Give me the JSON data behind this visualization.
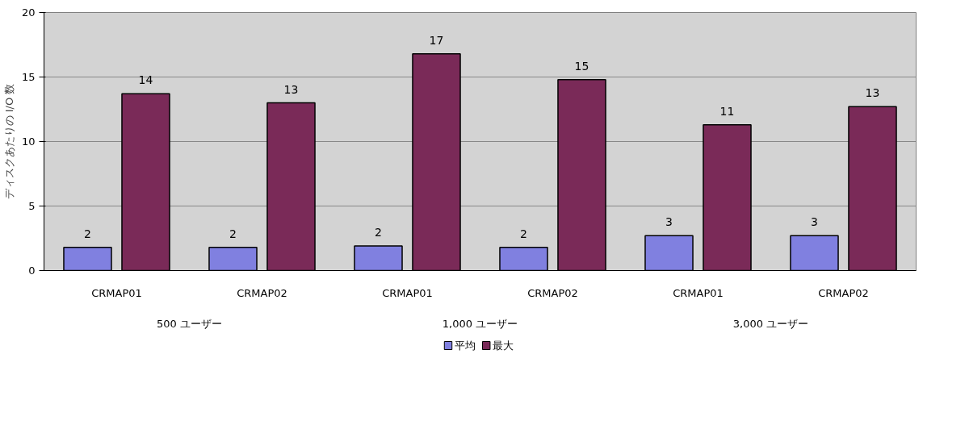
{
  "chart_data": {
    "type": "bar",
    "ylabel": "ディスクあたりの I/O 数",
    "categories": [
      "CRMAP01",
      "CRMAP02",
      "CRMAP01",
      "CRMAP02",
      "CRMAP01",
      "CRMAP02"
    ],
    "annotations": [
      "500 ユーザー",
      "1,000 ユーザー",
      "3,000 ユーザー"
    ],
    "series": [
      {
        "name": "平均",
        "color": "#8080e0",
        "values": [
          1.8,
          1.8,
          1.9,
          1.8,
          2.7,
          2.7
        ],
        "value_labels": [
          "2",
          "2",
          "2",
          "2",
          "3",
          "3"
        ]
      },
      {
        "name": "最大",
        "color": "#7a2a58",
        "values": [
          13.7,
          13.0,
          16.8,
          14.8,
          11.3,
          12.7
        ],
        "value_labels": [
          "14",
          "13",
          "17",
          "15",
          "11",
          "13"
        ]
      }
    ],
    "ylim": [
      0,
      20
    ],
    "yticks": [
      0,
      5,
      10,
      15,
      20
    ],
    "grid": "y",
    "legend": "bottom"
  }
}
